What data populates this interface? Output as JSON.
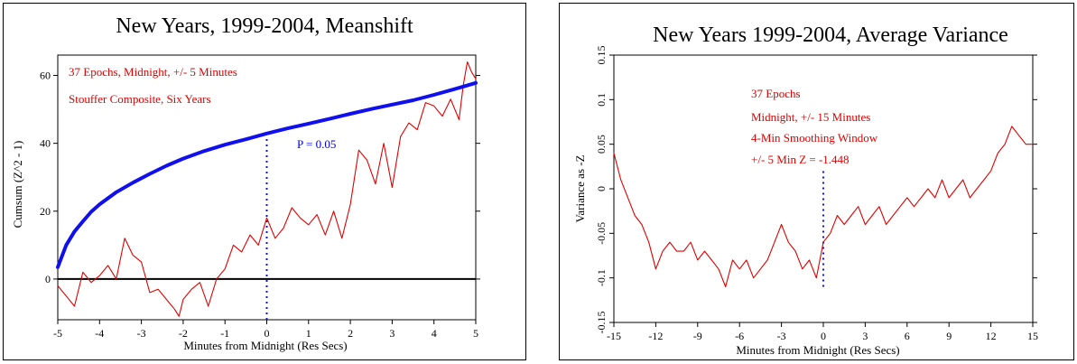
{
  "chart_data": [
    {
      "type": "line",
      "title": "New Years, 1999-2004, Meanshift",
      "xlabel": "Minutes from Midnight (Res Secs)",
      "ylabel": "Cumsum (Z^2 - 1)",
      "xlim": [
        -5,
        5
      ],
      "ylim": [
        -12,
        66
      ],
      "xticks": [
        -5,
        -4,
        -3,
        -2,
        -1,
        0,
        1,
        2,
        3,
        4,
        5
      ],
      "yticks": [
        0,
        20,
        40,
        60
      ],
      "grid": false,
      "annotations": [
        "37 Epochs, Midnight, +/- 5 Minutes",
        "Stouffer Composite, Six Years",
        "P = 0.05"
      ],
      "series": [
        {
          "color": "#e00000",
          "x": [
            -5,
            -4.8,
            -4.6,
            -4.4,
            -4.2,
            -4,
            -3.8,
            -3.6,
            -3.4,
            -3.2,
            -3,
            -2.8,
            -2.6,
            -2.4,
            -2.2,
            -2.1,
            -2,
            -1.8,
            -1.6,
            -1.4,
            -1.2,
            -1,
            -0.8,
            -0.6,
            -0.4,
            -0.2,
            0,
            0.2,
            0.4,
            0.6,
            0.8,
            1,
            1.2,
            1.4,
            1.6,
            1.8,
            2,
            2.2,
            2.4,
            2.6,
            2.8,
            3,
            3.2,
            3.4,
            3.6,
            3.8,
            4,
            4.2,
            4.4,
            4.6,
            4.7,
            4.8,
            4.9,
            5
          ],
          "y": [
            -2,
            -5,
            -8,
            2,
            -1,
            1,
            4,
            0,
            12,
            7,
            5,
            -4,
            -3,
            -6,
            -9,
            -11,
            -6,
            -3,
            -1,
            -8,
            0,
            3,
            10,
            8,
            13,
            10,
            18,
            12,
            15,
            21,
            18,
            16,
            19,
            13,
            20,
            12,
            22,
            38,
            35,
            28,
            40,
            27,
            42,
            46,
            44,
            52,
            51,
            48,
            53,
            47,
            57,
            64,
            61,
            59
          ]
        },
        {
          "color": "#1010ee",
          "x": [
            -5,
            -4.8,
            -4.6,
            -4.4,
            -4.2,
            -4,
            -3.6,
            -3.2,
            -2.8,
            -2.4,
            -2,
            -1.5,
            -1,
            -0.5,
            0,
            0.5,
            1,
            1.5,
            2,
            2.5,
            3,
            3.5,
            4,
            4.5,
            5
          ],
          "y": [
            3.5,
            10,
            14,
            17,
            19.8,
            22,
            25.6,
            28.4,
            31,
            33.4,
            35.5,
            37.7,
            39.6,
            41.2,
            42.9,
            44.4,
            45.8,
            47.2,
            48.7,
            50.1,
            51.4,
            52.7,
            54.3,
            56,
            57.8
          ]
        }
      ],
      "marker_line": {
        "x": 0,
        "y_range": [
          -12,
          42
        ]
      },
      "zero_line": true
    },
    {
      "type": "line",
      "title": "New Years 1999-2004, Average Variance",
      "xlabel": "Minutes from Midnight (Res Secs)",
      "ylabel": "Variance as -Z",
      "xlim": [
        -15,
        15
      ],
      "ylim": [
        -0.15,
        0.15
      ],
      "xticks": [
        -15,
        -12,
        -9,
        -6,
        -3,
        0,
        3,
        6,
        9,
        12,
        15
      ],
      "yticks": [
        -0.15,
        -0.1,
        -0.05,
        0,
        0.05,
        0.1,
        0.15
      ],
      "ytick_labels": [
        "-0.15",
        "-0.1",
        "-0.05",
        "0",
        "0.05",
        "0.1",
        "0.15"
      ],
      "grid": false,
      "annotations": [
        "37 Epochs",
        "Midnight, +/- 15 Minutes",
        "4-Min Smoothing Window",
        "+/- 5 Min Z = -1.448"
      ],
      "series": [
        {
          "color": "#e00000",
          "x": [
            -15,
            -14.5,
            -14,
            -13.5,
            -13,
            -12.5,
            -12,
            -11.5,
            -11,
            -10.5,
            -10,
            -9.5,
            -9,
            -8.5,
            -8,
            -7.5,
            -7,
            -6.5,
            -6,
            -5.5,
            -5,
            -4.5,
            -4,
            -3.5,
            -3,
            -2.5,
            -2,
            -1.5,
            -1,
            -0.5,
            0,
            0.5,
            1,
            1.5,
            2,
            2.5,
            3,
            3.5,
            4,
            4.5,
            5,
            5.5,
            6,
            6.5,
            7,
            7.5,
            8,
            8.5,
            9,
            9.5,
            10,
            10.5,
            11,
            11.5,
            12,
            12.5,
            13,
            13.5,
            14,
            14.5,
            15
          ],
          "y": [
            0.04,
            0.01,
            -0.01,
            -0.03,
            -0.04,
            -0.06,
            -0.09,
            -0.07,
            -0.06,
            -0.07,
            -0.07,
            -0.06,
            -0.08,
            -0.07,
            -0.08,
            -0.09,
            -0.11,
            -0.08,
            -0.09,
            -0.08,
            -0.1,
            -0.09,
            -0.08,
            -0.06,
            -0.04,
            -0.06,
            -0.07,
            -0.09,
            -0.08,
            -0.1,
            -0.06,
            -0.05,
            -0.03,
            -0.04,
            -0.03,
            -0.02,
            -0.04,
            -0.03,
            -0.02,
            -0.04,
            -0.03,
            -0.02,
            -0.01,
            -0.02,
            -0.01,
            0,
            -0.01,
            0.01,
            -0.01,
            0,
            0.01,
            -0.01,
            0,
            0.01,
            0.02,
            0.04,
            0.05,
            0.07,
            0.06,
            0.05,
            0.05
          ]
        }
      ],
      "marker_line": {
        "x": 0,
        "y_range": [
          -0.11,
          0.02
        ]
      }
    }
  ]
}
